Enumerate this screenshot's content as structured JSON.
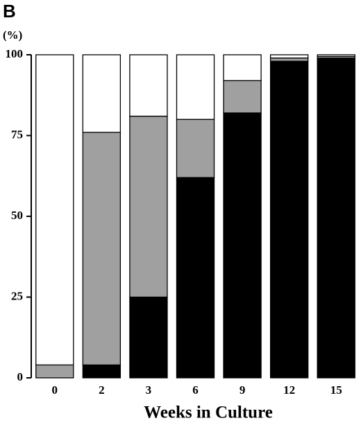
{
  "panel_label": "B",
  "chart_data": {
    "type": "stacked-bar",
    "y_unit_label": "(%)",
    "xlabel": "Weeks in Culture",
    "categories": [
      "0",
      "2",
      "3",
      "6",
      "9",
      "12",
      "15"
    ],
    "series": [
      {
        "color": "#000000",
        "values": [
          0,
          4,
          25,
          62,
          82,
          98,
          99
        ]
      },
      {
        "color": "#a0a0a0",
        "values": [
          4,
          72,
          56,
          18,
          10,
          1,
          0.5
        ]
      },
      {
        "color": "#ffffff",
        "values": [
          96,
          24,
          19,
          20,
          8,
          1,
          0.5
        ]
      }
    ],
    "ylim": [
      0,
      100
    ],
    "yticks": [
      0,
      25,
      50,
      75,
      100
    ]
  }
}
